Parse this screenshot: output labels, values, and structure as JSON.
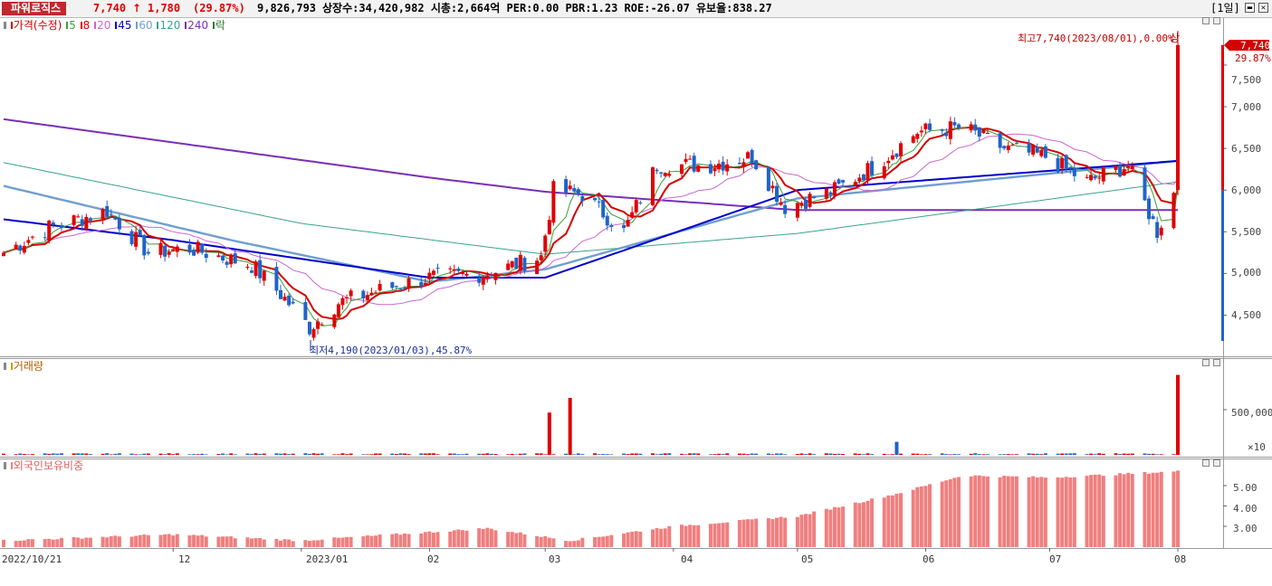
{
  "header": {
    "stock_name": "파워로직스",
    "price": "7,740",
    "arrow": "↑",
    "change": "1,780",
    "change_pct": "(29.87%)",
    "volume": "9,826,793",
    "info": "상장수:34,420,982 시총:2,664억 PER:0.00 PBR:1.23 ROE:-26.07 유보율:838.27",
    "period": "[1일]",
    "colors": {
      "up": "#e00000",
      "name_bg": "#c0282d"
    }
  },
  "price_panel": {
    "legend": [
      {
        "text": "가격(수정)",
        "color": "#cc0000"
      },
      {
        "text": "5",
        "color": "#3a9d3a"
      },
      {
        "text": "8",
        "color": "#d40000"
      },
      {
        "text": "20",
        "color": "#cc66cc"
      },
      {
        "text": "45",
        "color": "#0000cc"
      },
      {
        "text": "60",
        "color": "#6f9fd0"
      },
      {
        "text": "120",
        "color": "#3aa38c"
      },
      {
        "text": "240",
        "color": "#7a2fb8"
      },
      {
        "text": "락",
        "color": "#2e7d32"
      }
    ],
    "max_label": "최고7,740(2023/08/01),0.00%",
    "max_marker": "상",
    "min_label": "최저4,190(2023/01/03),45.87%",
    "last_price_tag": "7,740",
    "last_pct_tag": "29.87%",
    "y_ticks": [
      "7,500",
      "7,000",
      "6,500",
      "6,000",
      "5,500",
      "5,000",
      "4,500"
    ]
  },
  "volume_panel": {
    "legend": "거래량",
    "y_ticks": [
      "500,000"
    ],
    "unit": "×10"
  },
  "foreign_panel": {
    "legend": "외국인보유비중",
    "y_ticks": [
      "5.00",
      "4.00",
      "3.00"
    ]
  },
  "x_axis": {
    "labels": [
      "2022/10/21",
      "12",
      "2023/01",
      "02",
      "03",
      "04",
      "05",
      "06",
      "07",
      "08"
    ]
  },
  "chart_data": {
    "type": "candlestick",
    "title": "파워로직스",
    "x_start": "2022/10/21",
    "x_end": "2023/08/01",
    "price_range": [
      4190,
      7740
    ],
    "max": {
      "value": 7740,
      "date": "2023/08/01"
    },
    "min": {
      "value": 4190,
      "date": "2023/01/03"
    },
    "last": {
      "close": 7740,
      "change": 1780,
      "change_pct": 29.87,
      "volume": 9826793
    },
    "close_path": [
      [
        "2022/10/21",
        5250
      ],
      [
        "2022/11/01",
        5550
      ],
      [
        "2022/11/15",
        5750
      ],
      [
        "2022/11/25",
        5250
      ],
      [
        "2022/12/05",
        5300
      ],
      [
        "2022/12/20",
        5100
      ],
      [
        "2022/12/28",
        4700
      ],
      [
        "2023/01/03",
        4350
      ],
      [
        "2023/01/10",
        4650
      ],
      [
        "2023/01/20",
        4800
      ],
      [
        "2023/02/01",
        4950
      ],
      [
        "2023/02/15",
        5000
      ],
      [
        "2023/02/28",
        5200
      ],
      [
        "2023/03/03",
        6000
      ],
      [
        "2023/03/10",
        5950
      ],
      [
        "2023/03/20",
        5500
      ],
      [
        "2023/03/28",
        6300
      ],
      [
        "2023/04/10",
        6300
      ],
      [
        "2023/04/20",
        6400
      ],
      [
        "2023/04/28",
        5800
      ],
      [
        "2023/05/10",
        6000
      ],
      [
        "2023/05/20",
        6300
      ],
      [
        "2023/05/30",
        6700
      ],
      [
        "2023/06/10",
        6750
      ],
      [
        "2023/06/20",
        6500
      ],
      [
        "2023/06/30",
        6400
      ],
      [
        "2023/07/10",
        6100
      ],
      [
        "2023/07/20",
        6300
      ],
      [
        "2023/07/27",
        5500
      ],
      [
        "2023/07/31",
        5960
      ],
      [
        "2023/08/01",
        7740
      ]
    ],
    "moving_averages": {
      "240": [
        [
          "2022/10/21",
          6850
        ],
        [
          "2023/02/01",
          6150
        ],
        [
          "2023/03/01",
          5980
        ],
        [
          "2023/05/01",
          5760
        ],
        [
          "2023/08/01",
          5760
        ]
      ],
      "120": [
        [
          "2022/10/21",
          6330
        ],
        [
          "2023/01/01",
          5600
        ],
        [
          "2023/03/01",
          5230
        ],
        [
          "2023/05/01",
          5480
        ],
        [
          "2023/08/01",
          6100
        ]
      ],
      "60": [
        [
          "2022/10/21",
          6050
        ],
        [
          "2022/12/15",
          5400
        ],
        [
          "2023/02/01",
          4900
        ],
        [
          "2023/03/01",
          5050
        ],
        [
          "2023/05/01",
          5900
        ],
        [
          "2023/08/01",
          6350
        ]
      ],
      "45": [
        [
          "2022/10/21",
          5650
        ],
        [
          "2022/12/01",
          5400
        ],
        [
          "2023/02/01",
          4950
        ],
        [
          "2023/03/01",
          4950
        ],
        [
          "2023/05/01",
          6000
        ],
        [
          "2023/08/01",
          6350
        ]
      ]
    },
    "volume_peaks": [
      {
        "date": "2023/03/02",
        "volume": 520000
      },
      {
        "date": "2023/03/07",
        "volume": 700000
      },
      {
        "date": "2023/05/25",
        "volume": 160000
      },
      {
        "date": "2023/08/01",
        "volume": 982679
      }
    ],
    "foreign_ratio": [
      [
        "2022/10/21",
        2.3
      ],
      [
        "2022/12/01",
        2.6
      ],
      [
        "2023/01/01",
        2.3
      ],
      [
        "2023/02/15",
        2.9
      ],
      [
        "2023/03/07",
        2.3
      ],
      [
        "2023/04/01",
        3.0
      ],
      [
        "2023/05/01",
        3.5
      ],
      [
        "2023/05/25",
        4.6
      ],
      [
        "2023/06/10",
        5.5
      ],
      [
        "2023/07/01",
        5.4
      ],
      [
        "2023/08/01",
        5.7
      ]
    ]
  }
}
